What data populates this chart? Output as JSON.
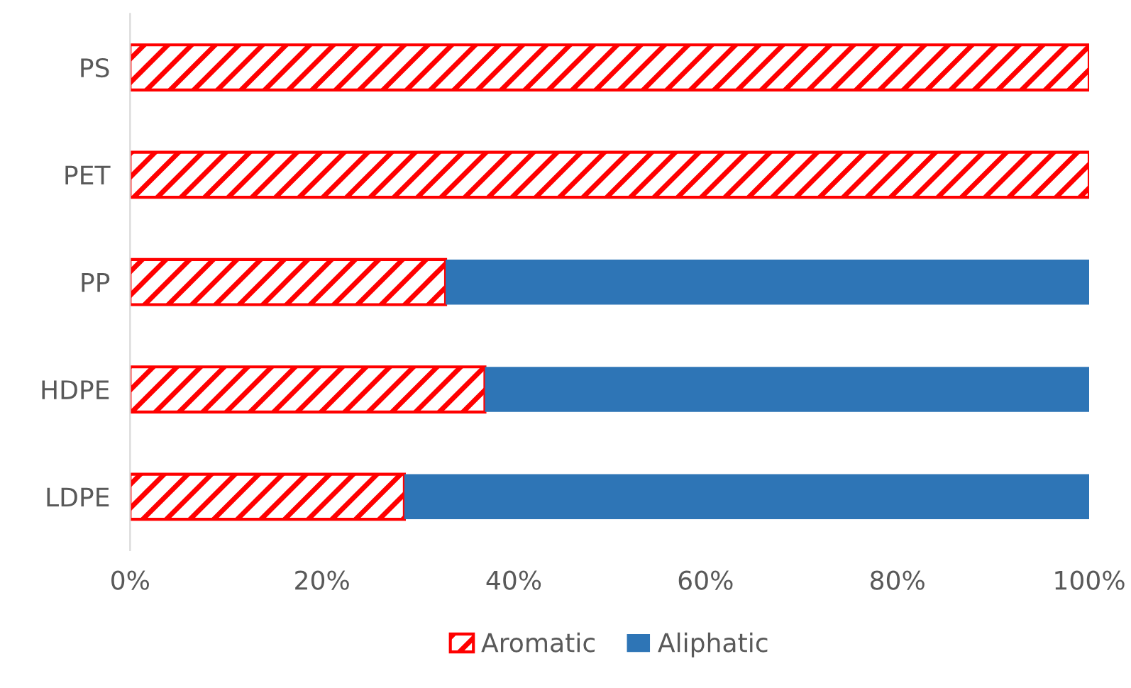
{
  "chart_data": {
    "type": "bar",
    "orientation": "horizontal",
    "stacked": true,
    "categories": [
      "PS",
      "PET",
      "PP",
      "HDPE",
      "LDPE"
    ],
    "series": [
      {
        "name": "Aromatic",
        "color": "#ff0000",
        "values": [
          100,
          100,
          32.9,
          37,
          28.6
        ]
      },
      {
        "name": "Aliphatic",
        "color": "#2e75b6",
        "values": [
          0,
          0,
          67.1,
          63,
          71.4
        ]
      }
    ],
    "xlim": [
      0,
      100
    ],
    "xticks": [
      {
        "value": 0,
        "label": "0%"
      },
      {
        "value": 20,
        "label": "20%"
      },
      {
        "value": 40,
        "label": "40%"
      },
      {
        "value": 60,
        "label": "60%"
      },
      {
        "value": 80,
        "label": "80%"
      },
      {
        "value": 100,
        "label": "100%"
      }
    ],
    "grid": false,
    "legend": "bottom"
  }
}
